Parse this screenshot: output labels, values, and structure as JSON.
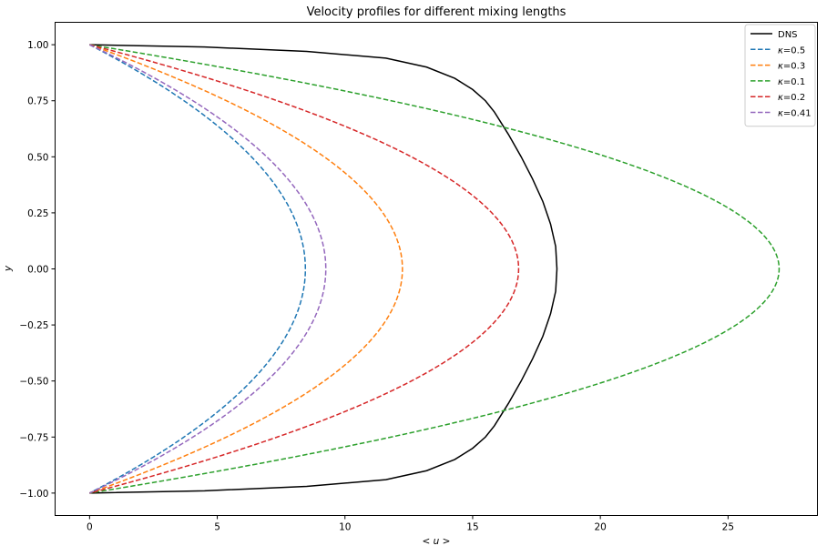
{
  "chart_data": {
    "type": "line",
    "title": "Velocity profiles for different mixing lengths",
    "xlabel": "< u >",
    "ylabel": "y",
    "xlim": [
      -1.35,
      28.5
    ],
    "ylim": [
      -1.1,
      1.1
    ],
    "xticks": [
      0,
      5,
      10,
      15,
      20,
      25
    ],
    "yticks": [
      1.0,
      0.75,
      0.5,
      0.25,
      0.0,
      -0.25,
      -0.5,
      -0.75,
      -1.0
    ],
    "xtick_labels": [
      "0",
      "5",
      "10",
      "15",
      "20",
      "25"
    ],
    "ytick_labels": [
      "1.00",
      "0.75",
      "0.50",
      "0.25",
      "0.00",
      "−0.25",
      "−0.50",
      "−0.75",
      "−1.00"
    ],
    "grid": false,
    "legend_position": "top-right",
    "series": [
      {
        "name": "DNS",
        "label_prefix": "",
        "label_value": "DNS",
        "color": "#000000",
        "dashed": false,
        "y": [
          1.0,
          0.99,
          0.97,
          0.94,
          0.9,
          0.85,
          0.8,
          0.75,
          0.7,
          0.6,
          0.5,
          0.4,
          0.3,
          0.2,
          0.1,
          0.0,
          -0.1,
          -0.2,
          -0.3,
          -0.4,
          -0.5,
          -0.6,
          -0.7,
          -0.75,
          -0.8,
          -0.85,
          -0.9,
          -0.94,
          -0.97,
          -0.99,
          -1.0
        ],
        "x": [
          0.0,
          4.5,
          8.5,
          11.6,
          13.2,
          14.3,
          15.0,
          15.5,
          15.85,
          16.4,
          16.9,
          17.35,
          17.75,
          18.05,
          18.25,
          18.3,
          18.25,
          18.05,
          17.75,
          17.35,
          16.9,
          16.4,
          15.85,
          15.5,
          15.0,
          14.3,
          13.2,
          11.6,
          8.5,
          4.5,
          0.0
        ]
      },
      {
        "name": "κ=0.5",
        "label_prefix": "κ",
        "label_value": "=0.5",
        "color": "#1f77b4",
        "dashed": true,
        "peak": 8.45
      },
      {
        "name": "κ=0.3",
        "label_prefix": "κ",
        "label_value": "=0.3",
        "color": "#ff7f0e",
        "dashed": true,
        "peak": 12.25
      },
      {
        "name": "κ=0.1",
        "label_prefix": "κ",
        "label_value": "=0.1",
        "color": "#2ca02c",
        "dashed": true,
        "peak": 27.0
      },
      {
        "name": "κ=0.2",
        "label_prefix": "κ",
        "label_value": "=0.2",
        "color": "#d62728",
        "dashed": true,
        "peak": 16.8
      },
      {
        "name": "κ=0.41",
        "label_prefix": "κ",
        "label_value": "=0.41",
        "color": "#9467bd",
        "dashed": true,
        "peak": 9.25
      }
    ]
  }
}
